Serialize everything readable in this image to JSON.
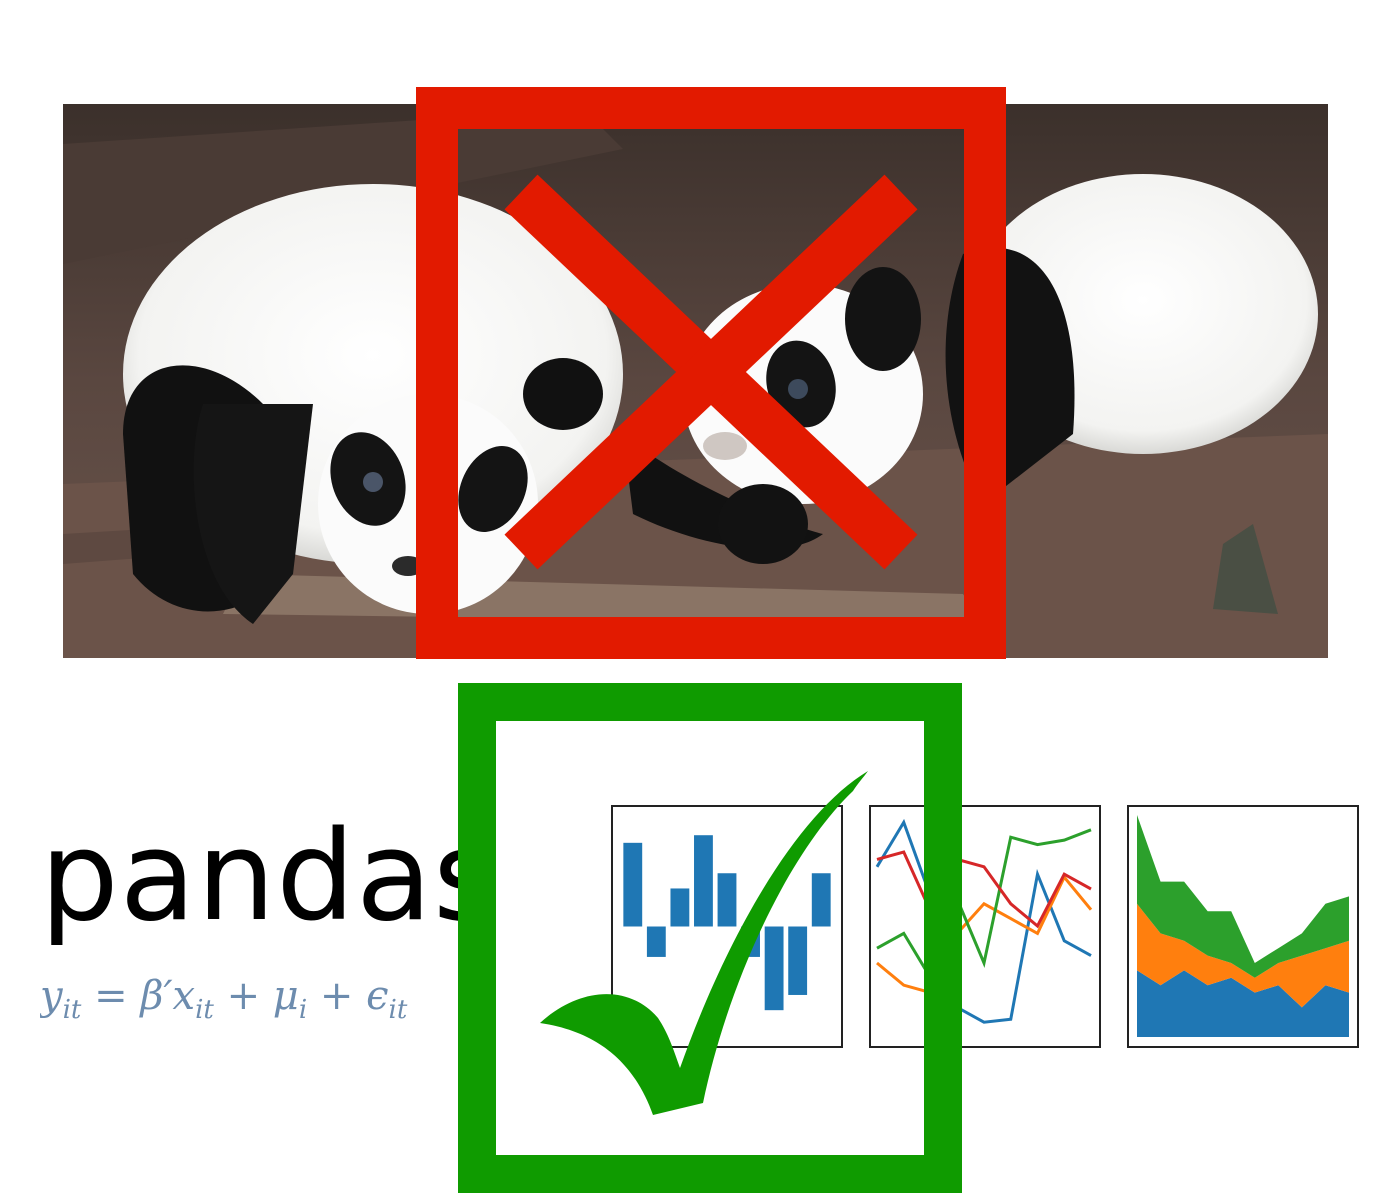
{
  "hero": {
    "subject": "pandas-photo",
    "cross_color": "#e21a00"
  },
  "logo": {
    "wordmark": "pandas",
    "formula": "y_it = β′x_it + μ_i + ϵ_it",
    "wordmark_color": "#000000",
    "formula_color": "#6d8cae"
  },
  "check": {
    "color": "#0f9b00"
  },
  "charts": {
    "chart_data": [
      {
        "type": "bar",
        "values": [
          5.5,
          -2.0,
          2.5,
          6.0,
          3.5,
          -2.0,
          -5.5,
          -4.5,
          3.5
        ],
        "colors": [
          "#1f77b4"
        ]
      },
      {
        "type": "line",
        "x": [
          0,
          1,
          2,
          3,
          4,
          5,
          6,
          7,
          8
        ],
        "series": [
          {
            "color": "#1f77b4",
            "values": [
              4.5,
              7.5,
              2.5,
              -5,
              -6,
              -5.8,
              4,
              -0.5,
              -1.5
            ]
          },
          {
            "color": "#ff7f0e",
            "values": [
              -2,
              -3.5,
              -4,
              0,
              2,
              1,
              0,
              3.8,
              1.6
            ]
          },
          {
            "color": "#2ca02c",
            "values": [
              -1,
              0,
              -3,
              2.3,
              -2,
              6.5,
              6,
              6.3,
              7
            ]
          },
          {
            "color": "#d62728",
            "values": [
              5,
              5.5,
              1.5,
              5,
              4.5,
              2,
              0.5,
              4,
              3
            ]
          }
        ]
      },
      {
        "type": "area",
        "x": [
          0,
          1,
          2,
          3,
          4,
          5,
          6,
          7,
          8,
          9
        ],
        "series": [
          {
            "color": "#1f77b4",
            "values": [
              4.5,
              3.5,
              4.5,
              3.5,
              4,
              3,
              3.5,
              2,
              3.5,
              3
            ]
          },
          {
            "color": "#ff7f0e",
            "values": [
              4.5,
              3.5,
              2,
              2,
              1,
              1,
              1.5,
              3.5,
              2.5,
              3.5
            ]
          },
          {
            "color": "#2ca02c",
            "values": [
              6,
              3.5,
              4,
              3,
              3.5,
              1,
              1,
              1.5,
              3,
              3
            ]
          }
        ]
      }
    ]
  }
}
